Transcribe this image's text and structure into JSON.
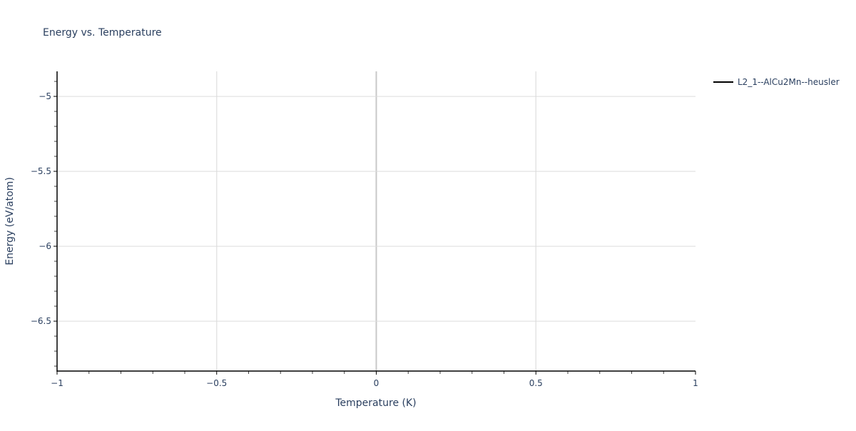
{
  "chart_data": {
    "type": "line",
    "title": "Energy vs. Temperature",
    "xlabel": "Temperature (K)",
    "ylabel": "Energy (eV/atom)",
    "xlim": [
      -1,
      1
    ],
    "ylim": [
      -6.833,
      -4.833
    ],
    "x_ticks": [
      -1,
      -0.5,
      0,
      0.5,
      1
    ],
    "x_tick_labels": [
      "−1",
      "−0.5",
      "0",
      "0.5",
      "1"
    ],
    "y_ticks": [
      -5,
      -5.5,
      -6,
      -6.5
    ],
    "y_tick_labels": [
      "−5",
      "−5.5",
      "−6",
      "−6.5"
    ],
    "grid": true,
    "legend_placement": "top-right outside",
    "series": [
      {
        "name": "L2_1--AlCu2Mn--heusler",
        "color": "#000000",
        "x": [],
        "y": []
      }
    ]
  }
}
